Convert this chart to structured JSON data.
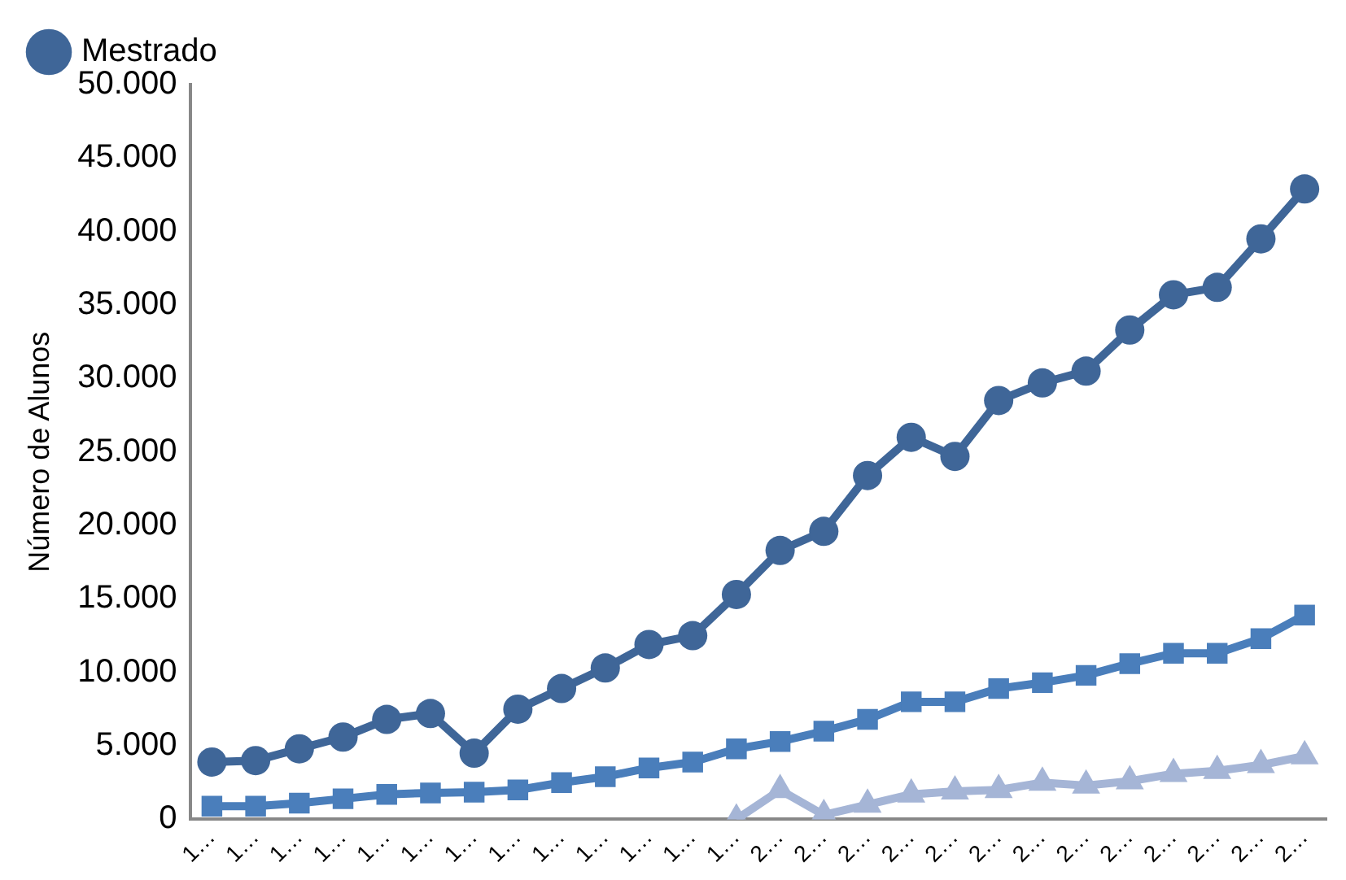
{
  "chart_data": {
    "type": "line",
    "ylabel": "Número de Alunos",
    "categories": [
      "1…",
      "1…",
      "1…",
      "1…",
      "1…",
      "1…",
      "1…",
      "1…",
      "1…",
      "1…",
      "1…",
      "1…",
      "1…",
      "2…",
      "2…",
      "2…",
      "2…",
      "2…",
      "2…",
      "2…",
      "2…",
      "2…",
      "2…",
      "2…",
      "2…",
      "2…"
    ],
    "series": [
      {
        "name": "Mestrado",
        "color": "#3f6698",
        "marker": "circle",
        "values": [
          3900,
          4000,
          4800,
          5600,
          6800,
          7200,
          4500,
          7500,
          8900,
          10300,
          11900,
          12500,
          15300,
          18300,
          19600,
          23400,
          26000,
          24700,
          28500,
          29700,
          30500,
          33300,
          35700,
          36200,
          39500,
          42900
        ]
      },
      {
        "color": "#4a7ebb",
        "marker": "square",
        "values": [
          900,
          900,
          1100,
          1400,
          1700,
          1800,
          1850,
          2000,
          2500,
          2900,
          3500,
          3900,
          4800,
          5300,
          6000,
          6800,
          8000,
          8000,
          8900,
          9300,
          9800,
          10600,
          11300,
          11300,
          12300,
          13900
        ]
      },
      {
        "color": "#a5b5d6",
        "marker": "triangle",
        "values": [
          null,
          null,
          null,
          null,
          null,
          null,
          null,
          null,
          null,
          null,
          null,
          null,
          0,
          2000,
          300,
          1000,
          1700,
          1900,
          2000,
          2500,
          2300,
          2600,
          3100,
          3300,
          3700,
          4300
        ]
      }
    ],
    "ylim": [
      0,
      50000
    ],
    "yticks": [
      {
        "value": 0,
        "label": "0"
      },
      {
        "value": 5000,
        "label": "5.000"
      },
      {
        "value": 10000,
        "label": "10.000"
      },
      {
        "value": 15000,
        "label": "15.000"
      },
      {
        "value": 20000,
        "label": "20.000"
      },
      {
        "value": 25000,
        "label": "25.000"
      },
      {
        "value": 30000,
        "label": "30.000"
      },
      {
        "value": 35000,
        "label": "35.000"
      },
      {
        "value": 40000,
        "label": "40.000"
      },
      {
        "value": 45000,
        "label": "45.000"
      },
      {
        "value": 50000,
        "label": "50.000"
      }
    ],
    "grid": false,
    "legend": "top left"
  }
}
